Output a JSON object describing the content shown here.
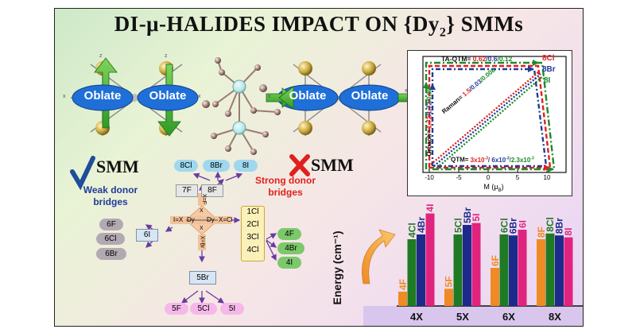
{
  "title": {
    "main": "DI-μ-HALIDES IMPACT ON {Dy",
    "sub": "2",
    "tail": "} SMMs"
  },
  "molecule": {
    "oblate_label": "Oblate",
    "axis_labels": [
      "z",
      "x",
      "x",
      "z",
      "x",
      "x"
    ]
  },
  "left_panel": {
    "check_label": "SMM",
    "weak_label_1": "Weak donor",
    "weak_label_2": "bridges",
    "cross_label": "SMM",
    "strong_label_1": "Strong donor",
    "strong_label_2": "bridges"
  },
  "scheme": {
    "top_nodes": [
      "8Cl",
      "8Br",
      "8I"
    ],
    "mid_nodes": [
      "7F",
      "8F"
    ],
    "left_hub": "6I",
    "left_nodes": [
      "6F",
      "6Cl",
      "6Br"
    ],
    "right_list": [
      "1Cl",
      "2Cl",
      "3Cl",
      "4Cl"
    ],
    "right_nodes": [
      "4F",
      "4Br",
      "4I"
    ],
    "bottom_hub": "5Br",
    "bottom_nodes": [
      "5F",
      "5Cl",
      "5I"
    ],
    "core": {
      "dy_left": "Dy",
      "dy_right": "Dy",
      "x_top": "X=F",
      "x_left": "I=X",
      "x_right": "X=Cl",
      "x_bottom": "X=Br",
      "x_center_top": "X",
      "x_center_bottom": "X"
    }
  },
  "plot": {
    "title_prefix": "TA-QTM= ",
    "ta_values": [
      "0.62",
      "/0.6",
      "/0.12"
    ],
    "legend": [
      "8Cl",
      "8Br",
      "8I"
    ],
    "orbach_prefix": "Orbach= ",
    "orbach_values": [
      "1.72",
      "/1.72",
      "/0.88"
    ],
    "raman_prefix": "Raman= ",
    "raman_values": [
      "1.5",
      "/0.03",
      "/0.008"
    ],
    "qtm_prefix": "QTM= ",
    "qtm_values": [
      "3x10",
      "/ 6x10",
      "/2.3x10"
    ],
    "qtm_exp": "-3",
    "xlabel": "M (μ",
    "xlabel_sub": "B",
    "xlabel_tail": ")",
    "xticks": [
      "-10",
      "-5",
      "0",
      "5",
      "10"
    ]
  },
  "chart_data": {
    "type": "bar",
    "ylabel": "Energy (cm⁻¹)",
    "categories": [
      "4X",
      "5X",
      "6X",
      "8X"
    ],
    "series": [
      {
        "name": "F",
        "color": "#f08a24",
        "labels": [
          "4F",
          "5F",
          "6F",
          "8F"
        ],
        "values": [
          15,
          18,
          40,
          70
        ]
      },
      {
        "name": "Cl",
        "color": "#1f7a24",
        "labels": [
          "4Cl",
          "5Cl",
          "6Cl",
          "8Cl"
        ],
        "values": [
          70,
          75,
          75,
          76
        ]
      },
      {
        "name": "Br",
        "color": "#1d2a8c",
        "labels": [
          "4Br",
          "5Br",
          "6Br",
          "8Br"
        ],
        "values": [
          75,
          85,
          74,
          74
        ]
      },
      {
        "name": "I",
        "color": "#e0237f",
        "labels": [
          "4I",
          "5I",
          "6I",
          "8I"
        ],
        "values": [
          97,
          87,
          80,
          72
        ]
      }
    ],
    "ylim": [
      0,
      100
    ]
  },
  "colors": {
    "green": "#1e8a2a",
    "blue": "#1f3c98",
    "red": "#e0201f",
    "pink": "#e0237f",
    "orange": "#f08a24"
  }
}
